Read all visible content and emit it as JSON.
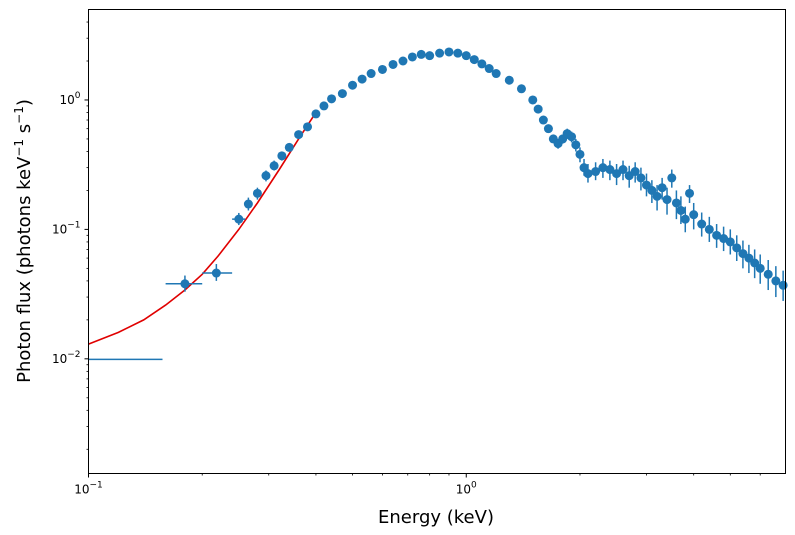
{
  "chart_data": {
    "type": "scatter",
    "title": "",
    "xlabel": "Energy (keV)",
    "ylabel": "Photon flux (photons keV",
    "ylabel_parts": {
      "main": "Photon flux (photons keV",
      "exp1": "−1",
      "s": " s",
      "exp2": "−1",
      "close": ")"
    },
    "xscale": "log",
    "yscale": "log",
    "xlim": [
      0.1,
      7.0
    ],
    "ylim": [
      0.0013,
      5.0
    ],
    "grid": false,
    "x_ticks": [
      {
        "value": 0.1,
        "base": "10",
        "exp": "−1"
      },
      {
        "value": 1.0,
        "base": "10",
        "exp": "0"
      }
    ],
    "y_ticks": [
      {
        "value": 0.01,
        "base": "10",
        "exp": "−2"
      },
      {
        "value": 0.1,
        "base": "10",
        "exp": "−1"
      },
      {
        "value": 1.0,
        "base": "10",
        "exp": "0"
      }
    ],
    "colors": {
      "data": "#1f77b4",
      "model": "#e00000",
      "axis": "#000000"
    },
    "model_series": {
      "color": "#e00000",
      "x": [
        0.1,
        0.12,
        0.14,
        0.16,
        0.18,
        0.2,
        0.22,
        0.25,
        0.28,
        0.32,
        0.36,
        0.4
      ],
      "y": [
        0.013,
        0.016,
        0.02,
        0.026,
        0.034,
        0.045,
        0.062,
        0.1,
        0.16,
        0.29,
        0.5,
        0.8
      ]
    },
    "data_series": {
      "color": "#1f77b4",
      "points": [
        {
          "x": 0.125,
          "y": 0.0099,
          "xlo": 0.1,
          "xhi": 0.157,
          "ylo": 0.0099,
          "yhi": 0.0099,
          "marker": false
        },
        {
          "x": 0.18,
          "y": 0.038,
          "xlo": 0.16,
          "xhi": 0.2,
          "ylo": 0.033,
          "yhi": 0.044,
          "marker": true
        },
        {
          "x": 0.218,
          "y": 0.046,
          "xlo": 0.2,
          "xhi": 0.24,
          "ylo": 0.04,
          "yhi": 0.054,
          "marker": true
        },
        {
          "x": 0.25,
          "y": 0.12,
          "xlo": 0.24,
          "xhi": 0.26,
          "ylo": 0.108,
          "yhi": 0.134,
          "marker": true
        },
        {
          "x": 0.265,
          "y": 0.157,
          "xlo": 0.26,
          "xhi": 0.27,
          "ylo": 0.14,
          "yhi": 0.176,
          "marker": true
        },
        {
          "x": 0.28,
          "y": 0.19,
          "ylo": 0.17,
          "yhi": 0.21,
          "marker": true
        },
        {
          "x": 0.295,
          "y": 0.26,
          "ylo": 0.235,
          "yhi": 0.285,
          "marker": true
        },
        {
          "x": 0.31,
          "y": 0.31,
          "ylo": 0.285,
          "yhi": 0.34,
          "marker": true
        },
        {
          "x": 0.325,
          "y": 0.37,
          "ylo": 0.34,
          "yhi": 0.4,
          "marker": true
        },
        {
          "x": 0.34,
          "y": 0.43,
          "ylo": 0.4,
          "yhi": 0.46,
          "marker": true
        },
        {
          "x": 0.36,
          "y": 0.54,
          "ylo": 0.51,
          "yhi": 0.57,
          "marker": true
        },
        {
          "x": 0.38,
          "y": 0.62,
          "ylo": 0.59,
          "yhi": 0.66,
          "marker": true
        },
        {
          "x": 0.4,
          "y": 0.78,
          "marker": true
        },
        {
          "x": 0.42,
          "y": 0.9,
          "marker": true
        },
        {
          "x": 0.44,
          "y": 1.02,
          "marker": true
        },
        {
          "x": 0.47,
          "y": 1.12,
          "marker": true
        },
        {
          "x": 0.5,
          "y": 1.3,
          "marker": true
        },
        {
          "x": 0.53,
          "y": 1.45,
          "marker": true
        },
        {
          "x": 0.56,
          "y": 1.6,
          "marker": true
        },
        {
          "x": 0.6,
          "y": 1.72,
          "marker": true
        },
        {
          "x": 0.64,
          "y": 1.88,
          "marker": true
        },
        {
          "x": 0.68,
          "y": 2.0,
          "marker": true
        },
        {
          "x": 0.72,
          "y": 2.15,
          "marker": true
        },
        {
          "x": 0.76,
          "y": 2.25,
          "marker": true
        },
        {
          "x": 0.8,
          "y": 2.2,
          "marker": true
        },
        {
          "x": 0.85,
          "y": 2.3,
          "marker": true
        },
        {
          "x": 0.9,
          "y": 2.35,
          "marker": true
        },
        {
          "x": 0.95,
          "y": 2.3,
          "marker": true
        },
        {
          "x": 1.0,
          "y": 2.2,
          "marker": true
        },
        {
          "x": 1.05,
          "y": 2.05,
          "marker": true
        },
        {
          "x": 1.1,
          "y": 1.9,
          "marker": true
        },
        {
          "x": 1.15,
          "y": 1.75,
          "marker": true
        },
        {
          "x": 1.2,
          "y": 1.6,
          "marker": true
        },
        {
          "x": 1.3,
          "y": 1.42,
          "marker": true
        },
        {
          "x": 1.4,
          "y": 1.22,
          "marker": true
        },
        {
          "x": 1.5,
          "y": 1.0,
          "marker": true
        },
        {
          "x": 1.55,
          "y": 0.85,
          "marker": true
        },
        {
          "x": 1.6,
          "y": 0.7,
          "marker": true
        },
        {
          "x": 1.65,
          "y": 0.6,
          "marker": true
        },
        {
          "x": 1.7,
          "y": 0.5,
          "marker": true
        },
        {
          "x": 1.75,
          "y": 0.46,
          "ylo": 0.42,
          "yhi": 0.5,
          "marker": true
        },
        {
          "x": 1.8,
          "y": 0.5,
          "ylo": 0.46,
          "yhi": 0.54,
          "marker": true
        },
        {
          "x": 1.85,
          "y": 0.55,
          "ylo": 0.5,
          "yhi": 0.6,
          "marker": true
        },
        {
          "x": 1.9,
          "y": 0.52,
          "ylo": 0.47,
          "yhi": 0.57,
          "marker": true
        },
        {
          "x": 1.95,
          "y": 0.45,
          "ylo": 0.4,
          "yhi": 0.5,
          "marker": true
        },
        {
          "x": 2.0,
          "y": 0.38,
          "ylo": 0.33,
          "yhi": 0.43,
          "marker": true
        },
        {
          "x": 2.05,
          "y": 0.3,
          "ylo": 0.26,
          "yhi": 0.35,
          "marker": true
        },
        {
          "x": 2.1,
          "y": 0.27,
          "ylo": 0.23,
          "yhi": 0.32,
          "marker": true
        },
        {
          "x": 2.2,
          "y": 0.28,
          "ylo": 0.24,
          "yhi": 0.33,
          "marker": true
        },
        {
          "x": 2.3,
          "y": 0.3,
          "ylo": 0.25,
          "yhi": 0.35,
          "marker": true
        },
        {
          "x": 2.4,
          "y": 0.29,
          "ylo": 0.24,
          "yhi": 0.34,
          "marker": true
        },
        {
          "x": 2.5,
          "y": 0.27,
          "ylo": 0.22,
          "yhi": 0.32,
          "marker": true
        },
        {
          "x": 2.6,
          "y": 0.29,
          "ylo": 0.24,
          "yhi": 0.34,
          "marker": true
        },
        {
          "x": 2.7,
          "y": 0.26,
          "ylo": 0.21,
          "yhi": 0.31,
          "marker": true
        },
        {
          "x": 2.8,
          "y": 0.28,
          "ylo": 0.23,
          "yhi": 0.33,
          "marker": true
        },
        {
          "x": 2.9,
          "y": 0.25,
          "ylo": 0.2,
          "yhi": 0.3,
          "marker": true
        },
        {
          "x": 3.0,
          "y": 0.22,
          "ylo": 0.18,
          "yhi": 0.27,
          "marker": true
        },
        {
          "x": 3.1,
          "y": 0.2,
          "ylo": 0.16,
          "yhi": 0.24,
          "marker": true
        },
        {
          "x": 3.2,
          "y": 0.18,
          "ylo": 0.14,
          "yhi": 0.22,
          "marker": true
        },
        {
          "x": 3.3,
          "y": 0.21,
          "ylo": 0.17,
          "yhi": 0.25,
          "marker": true
        },
        {
          "x": 3.4,
          "y": 0.17,
          "ylo": 0.13,
          "yhi": 0.21,
          "marker": true
        },
        {
          "x": 3.5,
          "y": 0.25,
          "ylo": 0.21,
          "yhi": 0.29,
          "marker": true
        },
        {
          "x": 3.6,
          "y": 0.16,
          "ylo": 0.12,
          "yhi": 0.2,
          "marker": true
        },
        {
          "x": 3.7,
          "y": 0.14,
          "ylo": 0.11,
          "yhi": 0.18,
          "marker": true
        },
        {
          "x": 3.8,
          "y": 0.12,
          "ylo": 0.095,
          "yhi": 0.15,
          "marker": true
        },
        {
          "x": 3.9,
          "y": 0.19,
          "ylo": 0.16,
          "yhi": 0.22,
          "marker": true
        },
        {
          "x": 4.0,
          "y": 0.13,
          "ylo": 0.1,
          "yhi": 0.16,
          "marker": true
        },
        {
          "x": 4.2,
          "y": 0.11,
          "ylo": 0.088,
          "yhi": 0.135,
          "marker": true
        },
        {
          "x": 4.4,
          "y": 0.1,
          "ylo": 0.08,
          "yhi": 0.125,
          "marker": true
        },
        {
          "x": 4.6,
          "y": 0.09,
          "ylo": 0.072,
          "yhi": 0.11,
          "marker": true
        },
        {
          "x": 4.8,
          "y": 0.085,
          "ylo": 0.068,
          "yhi": 0.105,
          "marker": true
        },
        {
          "x": 5.0,
          "y": 0.08,
          "ylo": 0.064,
          "yhi": 0.1,
          "marker": true
        },
        {
          "x": 5.2,
          "y": 0.072,
          "ylo": 0.057,
          "yhi": 0.09,
          "marker": true
        },
        {
          "x": 5.4,
          "y": 0.065,
          "ylo": 0.05,
          "yhi": 0.082,
          "marker": true
        },
        {
          "x": 5.6,
          "y": 0.06,
          "ylo": 0.046,
          "yhi": 0.076,
          "marker": true
        },
        {
          "x": 5.8,
          "y": 0.055,
          "ylo": 0.042,
          "yhi": 0.07,
          "marker": true
        },
        {
          "x": 6.0,
          "y": 0.05,
          "ylo": 0.038,
          "yhi": 0.064,
          "marker": true
        },
        {
          "x": 6.3,
          "y": 0.045,
          "ylo": 0.034,
          "yhi": 0.058,
          "marker": true
        },
        {
          "x": 6.6,
          "y": 0.04,
          "ylo": 0.03,
          "yhi": 0.052,
          "marker": true
        },
        {
          "x": 6.9,
          "y": 0.037,
          "ylo": 0.028,
          "yhi": 0.048,
          "marker": true
        }
      ]
    }
  }
}
